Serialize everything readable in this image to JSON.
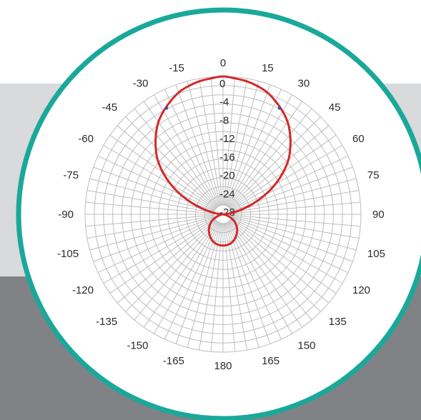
{
  "colors": {
    "background_top": "#ffffff",
    "background_middle": "#d9dadb",
    "background_bottom": "#808285",
    "ring_border": "#1aa89a",
    "disc_fill": "#ffffff",
    "grid": "#bdbdbd",
    "pattern": "#d22a2a",
    "marker": "#3a5aa8"
  },
  "chart_data": {
    "type": "polar-line",
    "title": "",
    "angle_unit": "degrees",
    "radial_unit": "dB",
    "angular_ticks": [
      0,
      15,
      30,
      45,
      60,
      75,
      90,
      105,
      120,
      135,
      150,
      165,
      180,
      -165,
      -150,
      -135,
      -120,
      -105,
      -90,
      -75,
      -60,
      -45,
      -30,
      -15
    ],
    "radial_ticks": [
      0,
      -4,
      -8,
      -12,
      -16,
      -20,
      -24,
      -28
    ],
    "radial_range": [
      -30,
      0
    ],
    "grid": true,
    "series": [
      {
        "angles": [
          0,
          5,
          10,
          15,
          20,
          25,
          30,
          35,
          40,
          45,
          50,
          55,
          60,
          65,
          70,
          75,
          80,
          85,
          90,
          100,
          110,
          120,
          130,
          140,
          150,
          160,
          170,
          180,
          -170,
          -160,
          -150,
          -140,
          -130,
          -120,
          -110,
          -100,
          -90,
          -85,
          -80,
          -75,
          -70,
          -65,
          -60,
          -55,
          -50,
          -45,
          -40,
          -35,
          -30,
          -25,
          -20,
          -15,
          -10,
          -5
        ],
        "values": [
          0,
          -0.3,
          -0.6,
          -1.1,
          -1.8,
          -2.9,
          -4.1,
          -5.5,
          -7.3,
          -9.3,
          -11.4,
          -14.0,
          -16.8,
          -19.8,
          -22.8,
          -25.5,
          -27.7,
          -29.2,
          -30.0,
          -29.6,
          -28.6,
          -27.3,
          -26.2,
          -25.2,
          -24.4,
          -23.7,
          -23.3,
          -23.2,
          -23.3,
          -23.7,
          -24.4,
          -25.2,
          -26.2,
          -27.3,
          -28.6,
          -29.6,
          -30.0,
          -29.2,
          -27.7,
          -25.5,
          -22.8,
          -19.8,
          -16.8,
          -14.0,
          -11.4,
          -9.3,
          -7.3,
          -5.5,
          -4.1,
          -2.9,
          -1.8,
          -1.1,
          -0.6,
          -0.3
        ]
      }
    ],
    "markers": [
      {
        "angle": -28,
        "value": -3.8
      },
      {
        "angle": 28,
        "value": -3.8
      }
    ]
  }
}
